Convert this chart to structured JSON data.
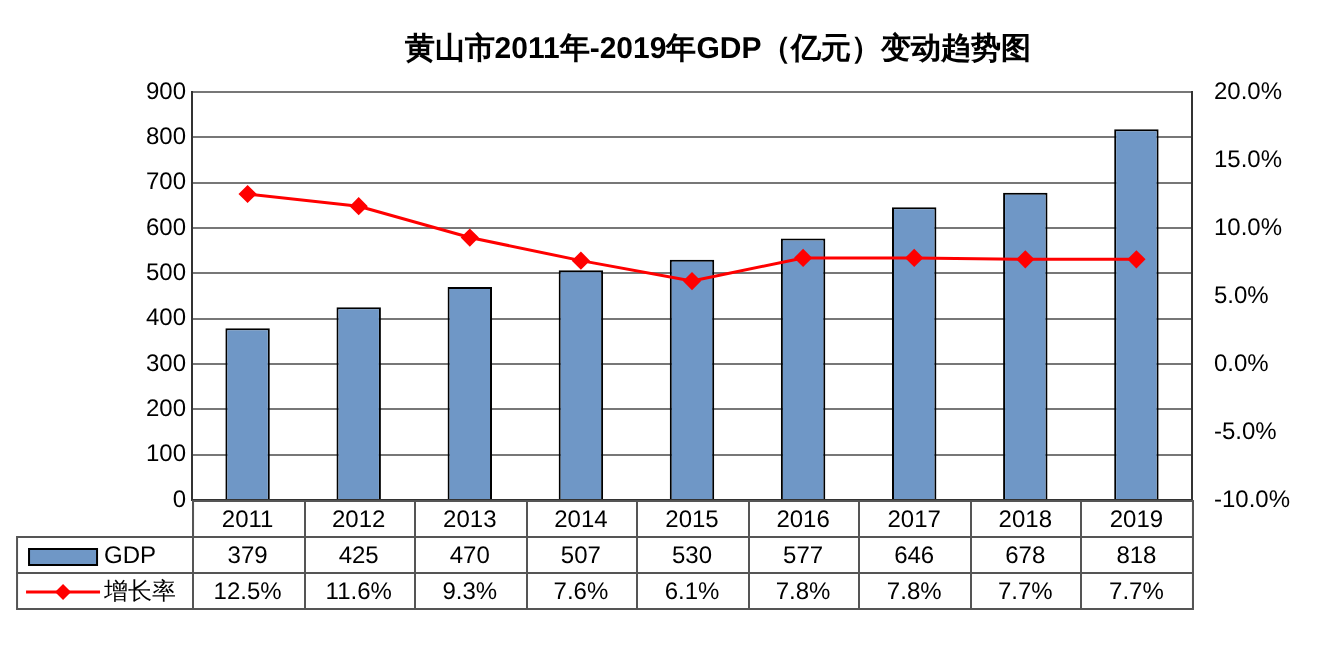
{
  "chart_data": {
    "type": "bar",
    "title": "黄山市2011年-2019年GDP（亿元）变动趋势图",
    "categories": [
      "2011",
      "2012",
      "2013",
      "2014",
      "2015",
      "2016",
      "2017",
      "2018",
      "2019"
    ],
    "series": [
      {
        "name": "GDP",
        "color": "#6f97c6",
        "values": [
          379,
          425,
          470,
          507,
          530,
          577,
          646,
          678,
          818
        ]
      },
      {
        "name": "增长率",
        "type": "line",
        "axis": "y2",
        "color": "#ff0000",
        "marker": "diamond",
        "line_style": "solid",
        "values": [
          12.5,
          11.6,
          9.3,
          7.6,
          6.1,
          7.8,
          7.8,
          7.7,
          7.7
        ],
        "value_labels": [
          "12.5%",
          "11.6%",
          "9.3%",
          "7.6%",
          "6.1%",
          "7.8%",
          "7.8%",
          "7.7%",
          "7.7%"
        ]
      }
    ],
    "ylim": [
      0,
      900
    ],
    "yticks": [
      0,
      100,
      200,
      300,
      400,
      500,
      600,
      700,
      800,
      900
    ],
    "y2lim": [
      -10,
      20
    ],
    "y2ticks": [
      {
        "value": -10,
        "label": "-10.0%"
      },
      {
        "value": -5,
        "label": "-5.0%"
      },
      {
        "value": 0,
        "label": "0.0%"
      },
      {
        "value": 5,
        "label": "5.0%"
      },
      {
        "value": 10,
        "label": "10.0%"
      },
      {
        "value": 15,
        "label": "15.0%"
      },
      {
        "value": 20,
        "label": "20.0%"
      }
    ],
    "grid": "y",
    "legend": "bottom",
    "data_labels": true
  }
}
